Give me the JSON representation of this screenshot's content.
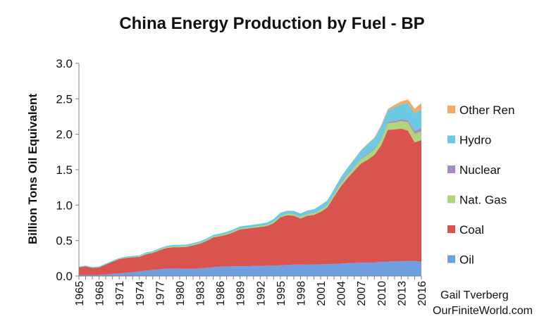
{
  "chart_data": {
    "type": "area",
    "stacked": true,
    "title": "China Energy Production by Fuel - BP",
    "ylabel": "Billion Tons Oil Equivalent",
    "ylim": [
      0,
      3.0
    ],
    "yticks": [
      "0.0",
      "0.5",
      "1.0",
      "1.5",
      "2.0",
      "2.5",
      "3.0"
    ],
    "x": [
      1965,
      1966,
      1967,
      1968,
      1969,
      1970,
      1971,
      1972,
      1973,
      1974,
      1975,
      1976,
      1977,
      1978,
      1979,
      1980,
      1981,
      1982,
      1983,
      1984,
      1985,
      1986,
      1987,
      1988,
      1989,
      1990,
      1991,
      1992,
      1993,
      1994,
      1995,
      1996,
      1997,
      1998,
      1999,
      2000,
      2001,
      2002,
      2003,
      2004,
      2005,
      2006,
      2007,
      2008,
      2009,
      2010,
      2011,
      2012,
      2013,
      2014,
      2015,
      2016
    ],
    "xticks": [
      "1965",
      "1968",
      "1971",
      "1974",
      "1977",
      "1980",
      "1983",
      "1986",
      "1989",
      "1992",
      "1995",
      "1998",
      "2001",
      "2004",
      "2007",
      "2010",
      "2013",
      "2016"
    ],
    "series": [
      {
        "name": "Oil",
        "color": "#6f9fe0",
        "values": [
          0.012,
          0.015,
          0.014,
          0.016,
          0.021,
          0.031,
          0.039,
          0.045,
          0.054,
          0.065,
          0.077,
          0.087,
          0.094,
          0.104,
          0.106,
          0.106,
          0.101,
          0.102,
          0.106,
          0.114,
          0.125,
          0.131,
          0.134,
          0.137,
          0.138,
          0.138,
          0.141,
          0.142,
          0.145,
          0.146,
          0.15,
          0.157,
          0.161,
          0.161,
          0.16,
          0.163,
          0.165,
          0.167,
          0.17,
          0.175,
          0.181,
          0.185,
          0.186,
          0.19,
          0.189,
          0.203,
          0.203,
          0.207,
          0.21,
          0.211,
          0.215,
          0.199
        ]
      },
      {
        "name": "Coal",
        "color": "#d9534f",
        "values": [
          0.11,
          0.12,
          0.1,
          0.105,
          0.14,
          0.17,
          0.2,
          0.21,
          0.21,
          0.205,
          0.23,
          0.24,
          0.27,
          0.29,
          0.3,
          0.3,
          0.31,
          0.33,
          0.35,
          0.38,
          0.42,
          0.43,
          0.45,
          0.48,
          0.52,
          0.53,
          0.54,
          0.55,
          0.56,
          0.6,
          0.68,
          0.7,
          0.69,
          0.65,
          0.69,
          0.7,
          0.74,
          0.8,
          0.95,
          1.09,
          1.2,
          1.3,
          1.4,
          1.45,
          1.52,
          1.64,
          1.86,
          1.86,
          1.87,
          1.84,
          1.67,
          1.72
        ]
      },
      {
        "name": "Nat. Gas",
        "color": "#b0d67a",
        "values": [
          0.0009,
          0.0013,
          0.0013,
          0.0013,
          0.0018,
          0.0025,
          0.003,
          0.004,
          0.005,
          0.006,
          0.008,
          0.009,
          0.011,
          0.012,
          0.013,
          0.013,
          0.012,
          0.011,
          0.011,
          0.011,
          0.012,
          0.012,
          0.013,
          0.013,
          0.014,
          0.014,
          0.014,
          0.014,
          0.015,
          0.016,
          0.016,
          0.018,
          0.02,
          0.021,
          0.022,
          0.024,
          0.027,
          0.029,
          0.032,
          0.037,
          0.045,
          0.052,
          0.062,
          0.072,
          0.076,
          0.085,
          0.092,
          0.097,
          0.108,
          0.117,
          0.121,
          0.124
        ]
      },
      {
        "name": "Nuclear",
        "color": "#a78bc9",
        "values": [
          0,
          0,
          0,
          0,
          0,
          0,
          0,
          0,
          0,
          0,
          0,
          0,
          0,
          0,
          0,
          0,
          0,
          0,
          0,
          0,
          0,
          0,
          0,
          0,
          0,
          0,
          0,
          0,
          0,
          0.003,
          0.003,
          0.003,
          0.003,
          0.003,
          0.003,
          0.004,
          0.004,
          0.006,
          0.01,
          0.011,
          0.012,
          0.012,
          0.014,
          0.016,
          0.016,
          0.017,
          0.02,
          0.022,
          0.025,
          0.03,
          0.039,
          0.048
        ]
      },
      {
        "name": "Hydro",
        "color": "#6cc9e2",
        "values": [
          0.01,
          0.011,
          0.011,
          0.012,
          0.012,
          0.013,
          0.013,
          0.014,
          0.014,
          0.015,
          0.016,
          0.016,
          0.017,
          0.018,
          0.019,
          0.02,
          0.02,
          0.021,
          0.022,
          0.023,
          0.023,
          0.025,
          0.026,
          0.027,
          0.028,
          0.029,
          0.03,
          0.031,
          0.035,
          0.039,
          0.043,
          0.044,
          0.045,
          0.047,
          0.049,
          0.05,
          0.063,
          0.065,
          0.064,
          0.08,
          0.089,
          0.098,
          0.109,
          0.132,
          0.14,
          0.163,
          0.158,
          0.197,
          0.208,
          0.24,
          0.252,
          0.263
        ]
      },
      {
        "name": "Other Ren",
        "color": "#f5a965",
        "values": [
          0,
          0,
          0,
          0,
          0,
          0,
          0,
          0,
          0,
          0,
          0,
          0,
          0,
          0,
          0,
          0,
          0,
          0,
          0,
          0,
          0,
          0,
          0,
          0,
          0,
          0,
          0,
          0,
          0,
          0,
          0,
          0,
          0,
          0,
          0,
          0,
          0,
          0,
          0.001,
          0.001,
          0.002,
          0.003,
          0.005,
          0.008,
          0.012,
          0.018,
          0.023,
          0.031,
          0.042,
          0.053,
          0.062,
          0.086
        ]
      }
    ],
    "legend_position": "right",
    "legend_order": [
      "Other Ren",
      "Hydro",
      "Nuclear",
      "Nat. Gas",
      "Coal",
      "Oil"
    ],
    "grid": false
  },
  "credit": {
    "line1": "Gail Tverberg",
    "line2": "OurFiniteWorld.com"
  }
}
